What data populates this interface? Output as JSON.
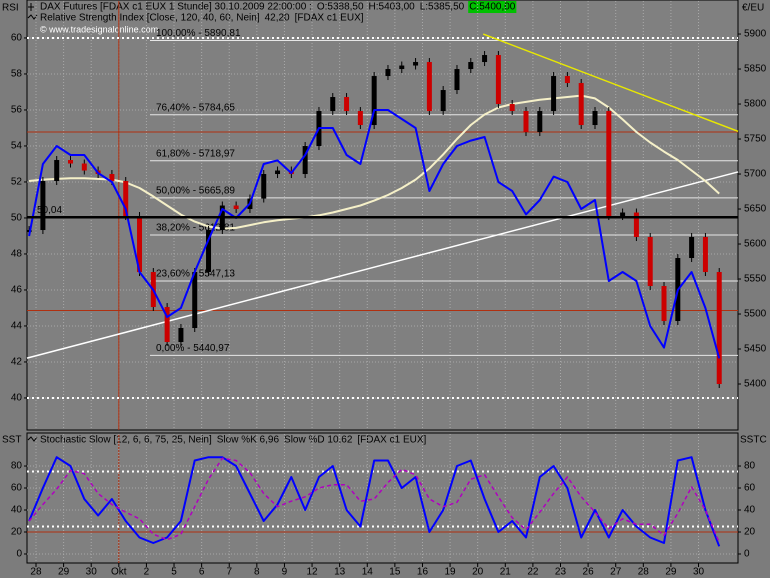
{
  "header": {
    "parts": [
      {
        "text": "DAX Futures [FDAX c1 EUX  1 Stunde] 30.10.2009 22:00:00 :",
        "color": "#000000"
      },
      {
        "text": "O:5388,50",
        "color": "#00a000"
      },
      {
        "text": "H:5403,00",
        "color": "#000000"
      },
      {
        "text": "L:5385,50",
        "color": "#000000"
      },
      {
        "text": "C:5400,00",
        "color": "#00c000"
      }
    ],
    "watermark": "© www.tradesignalonline.com"
  },
  "chart_data": [
    {
      "type": "line",
      "panel_label": "RSI",
      "y2_label": "€/EU",
      "legend": [
        {
          "text": "Relative Strength Index [Close, 120, 40, 60, Nein]",
          "color": "#000000"
        },
        {
          "text": "42,20",
          "color": "#0000ff"
        },
        {
          "text": "[FDAX c1 EUX]",
          "color": "#000000"
        }
      ],
      "x": [
        -0.25,
        0.25,
        0.75,
        1.25,
        1.75,
        2.25,
        2.75,
        3.25,
        3.75,
        4.25,
        4.75,
        5.25,
        5.75,
        6.25,
        6.75,
        7.25,
        7.75,
        8.25,
        8.75,
        9.25,
        9.75,
        10.25,
        10.75,
        11.25,
        11.75,
        12.25,
        12.75,
        13.25,
        13.75,
        14.25,
        14.75,
        15.25,
        15.75,
        16.25,
        16.75,
        17.25,
        17.75,
        18.25,
        18.75,
        19.25,
        19.75,
        20.25,
        20.75,
        21.25,
        21.75,
        22.25,
        22.75,
        23.25,
        23.75,
        24.25,
        24.75
      ],
      "xlim": [
        -0.326,
        25.43
      ],
      "ylim": [
        38.22,
        60.72
      ],
      "yticks": [
        40,
        42,
        44,
        46,
        48,
        50,
        52,
        54,
        56,
        58,
        60
      ],
      "y2lim": [
        5334.3,
        5912.9
      ],
      "y2ticks": [
        5400,
        5450,
        5500,
        5550,
        5600,
        5650,
        5700,
        5750,
        5800,
        5850,
        5900
      ],
      "series": [
        {
          "name": "Relative Strength Index",
          "color": "#0000ff",
          "kind": "line",
          "values": [
            49,
            53,
            54,
            53.5,
            53.5,
            52.5,
            52,
            50.5,
            47,
            46,
            44.5,
            45,
            47,
            48.8,
            50.5,
            50,
            50.8,
            53,
            53.2,
            52.5,
            53.5,
            55,
            55,
            53.5,
            53,
            56,
            56,
            55.5,
            55,
            51.5,
            53,
            54,
            54.3,
            54.5,
            52,
            51.5,
            50.2,
            51,
            52.3,
            52,
            50.5,
            51,
            46.5,
            47,
            46.5,
            44,
            42.8,
            46,
            47,
            45,
            42.2
          ]
        },
        {
          "color": "#f5f0c8",
          "kind": "line",
          "axis": "y2",
          "values": [
            5690,
            5692,
            5693,
            5694,
            5694,
            5693,
            5692,
            5688,
            5680,
            5668,
            5655,
            5642,
            5632,
            5625,
            5622,
            5623,
            5627,
            5631,
            5634,
            5636,
            5638,
            5641,
            5645,
            5650,
            5655,
            5662,
            5670,
            5680,
            5692,
            5708,
            5728,
            5750,
            5770,
            5785,
            5795,
            5800,
            5803,
            5806,
            5808,
            5810,
            5812,
            5808,
            5795,
            5778,
            5760,
            5745,
            5732,
            5720,
            5705,
            5690,
            5672
          ]
        },
        {
          "name": "DAX Futures",
          "color": "#cc0000",
          "kind": "candle",
          "axis": "y2",
          "values": [
            5620,
            5690,
            5720,
            5715,
            5705,
            5700,
            5690,
            5640,
            5560,
            5510,
            5460,
            5480,
            5560,
            5620,
            5655,
            5650,
            5665,
            5700,
            5705,
            5700,
            5740,
            5790,
            5810,
            5790,
            5770,
            5840,
            5850,
            5855,
            5860,
            5790,
            5820,
            5850,
            5860,
            5870,
            5800,
            5790,
            5760,
            5790,
            5840,
            5830,
            5770,
            5790,
            5640,
            5645,
            5610,
            5540,
            5490,
            5580,
            5610,
            5560,
            5400
          ]
        }
      ],
      "dotted_levels": [
        60,
        40
      ],
      "mid_line": {
        "value": 50.04,
        "label": "50,04"
      },
      "red_levels": [
        5760,
        5505
      ],
      "vline": 3,
      "fib_levels": [
        {
          "value": 5890.81,
          "label": "100,00% - 5890,81"
        },
        {
          "value": 5784.65,
          "label": "76,40% - 5784,65"
        },
        {
          "value": 5718.97,
          "label": "61,80% - 5718,97"
        },
        {
          "value": 5665.89,
          "label": "50,00% - 5665,89"
        },
        {
          "value": 5612.81,
          "label": "38,20% - 5612,81"
        },
        {
          "value": 5547.13,
          "label": "23,60% - 5547,13"
        },
        {
          "value": 5440.97,
          "label": "0,00% - 5440,97"
        }
      ],
      "trendlines": [
        {
          "x": [
            16.2,
            25.43
          ],
          "y": [
            5900,
            5761
          ],
          "color": "#e8e800"
        },
        {
          "x": [
            -0.326,
            25.43
          ],
          "y": [
            5437,
            5703
          ],
          "color": "#ffffff"
        }
      ]
    },
    {
      "type": "line",
      "panel_label": "SST",
      "y2_label": "SSTC",
      "legend": [
        {
          "text": "Stochastic Slow [12, 6, 6, 75, 25, Nein]",
          "color": "#000000"
        },
        {
          "text": "Slow %K 6,96",
          "color": "#0000ff"
        },
        {
          "text": "Slow %D 10,62",
          "color": "#9000a0"
        },
        {
          "text": "[FDAX c1 EUX]",
          "color": "#000000"
        }
      ],
      "x": [
        -0.25,
        0.25,
        0.75,
        1.25,
        1.75,
        2.25,
        2.75,
        3.25,
        3.75,
        4.25,
        4.75,
        5.25,
        5.75,
        6.25,
        6.75,
        7.25,
        7.75,
        8.25,
        8.75,
        9.25,
        9.75,
        10.25,
        10.75,
        11.25,
        11.75,
        12.25,
        12.75,
        13.25,
        13.75,
        14.25,
        14.75,
        15.25,
        15.75,
        16.25,
        16.75,
        17.25,
        17.75,
        18.25,
        18.75,
        19.25,
        19.75,
        20.25,
        20.75,
        21.25,
        21.75,
        22.25,
        22.75,
        23.25,
        23.75,
        24.25,
        24.75
      ],
      "xlim": [
        -0.326,
        25.43
      ],
      "xticks": [
        {
          "value": 0,
          "label": "28"
        },
        {
          "value": 1,
          "label": "29"
        },
        {
          "value": 2,
          "label": "30"
        },
        {
          "value": 3,
          "label": "Okt"
        },
        {
          "value": 4,
          "label": "2"
        },
        {
          "value": 5,
          "label": "5"
        },
        {
          "value": 6,
          "label": "6"
        },
        {
          "value": 7,
          "label": "7"
        },
        {
          "value": 8,
          "label": "8"
        },
        {
          "value": 9,
          "label": "9"
        },
        {
          "value": 10,
          "label": "12"
        },
        {
          "value": 11,
          "label": "13"
        },
        {
          "value": 12,
          "label": "14"
        },
        {
          "value": 13,
          "label": "15"
        },
        {
          "value": 14,
          "label": "16"
        },
        {
          "value": 15,
          "label": "19"
        },
        {
          "value": 16,
          "label": "20"
        },
        {
          "value": 17,
          "label": "21"
        },
        {
          "value": 18,
          "label": "22"
        },
        {
          "value": 19,
          "label": "23"
        },
        {
          "value": 20,
          "label": "26"
        },
        {
          "value": 21,
          "label": "27"
        },
        {
          "value": 22,
          "label": "28"
        },
        {
          "value": 23,
          "label": "29"
        },
        {
          "value": 24,
          "label": "30"
        }
      ],
      "ylim": [
        -8.2,
        97.3
      ],
      "yticks": [
        0,
        20,
        40,
        60,
        80
      ],
      "series": [
        {
          "name": "Slow %K",
          "color": "#0000ff",
          "kind": "line",
          "values": [
            30,
            60,
            88,
            80,
            50,
            35,
            50,
            30,
            15,
            10,
            15,
            30,
            85,
            88,
            88,
            80,
            55,
            30,
            45,
            70,
            40,
            70,
            80,
            40,
            25,
            85,
            85,
            60,
            70,
            20,
            40,
            80,
            85,
            50,
            20,
            30,
            15,
            70,
            80,
            60,
            15,
            40,
            15,
            40,
            25,
            15,
            10,
            85,
            88,
            40,
            6.96
          ]
        },
        {
          "name": "Slow %D",
          "color": "#b000c0",
          "kind": "dashed",
          "values": [
            30,
            45,
            59,
            76,
            73,
            55,
            45,
            38,
            32,
            18,
            13,
            18,
            43,
            68,
            87,
            85,
            74,
            55,
            43,
            48,
            52,
            60,
            63,
            63,
            48,
            50,
            65,
            77,
            72,
            50,
            43,
            47,
            68,
            72,
            52,
            33,
            22,
            38,
            55,
            70,
            52,
            38,
            23,
            32,
            27,
            27,
            17,
            37,
            61,
            40,
            10.62
          ]
        }
      ],
      "dotted_levels": [
        75,
        25
      ],
      "red_levels": [
        20
      ]
    }
  ]
}
